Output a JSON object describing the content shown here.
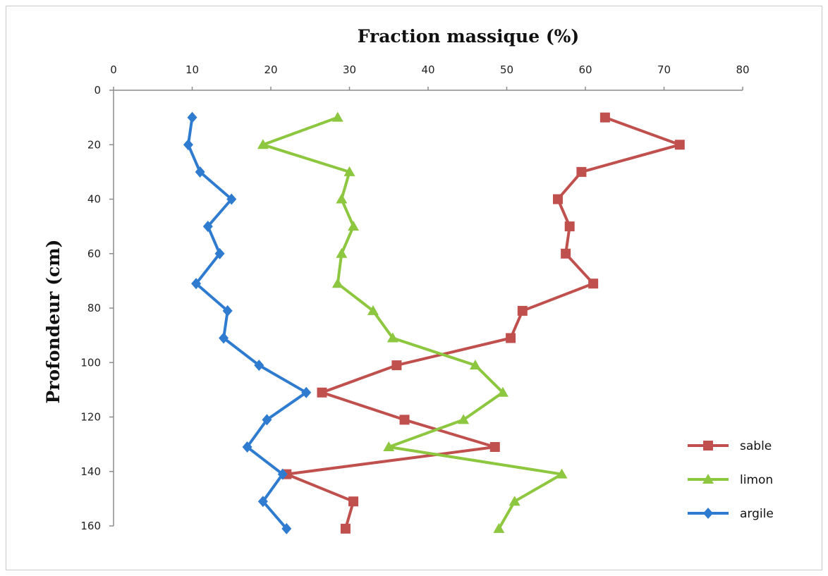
{
  "chart_data": {
    "type": "line",
    "title": "",
    "xlabel": "Fraction massique (%)",
    "ylabel": "Profondeur (cm)",
    "xlim": [
      0,
      80
    ],
    "ylim": [
      0,
      160
    ],
    "y_inverted": true,
    "x_axis_position": "top",
    "x_ticks": [
      0,
      10,
      20,
      30,
      40,
      50,
      60,
      70,
      80
    ],
    "y_ticks": [
      0,
      20,
      40,
      60,
      80,
      100,
      120,
      140,
      160
    ],
    "grid": false,
    "legend_position": "bottom-right",
    "series": [
      {
        "name": "sable",
        "color": "#C0504D",
        "marker": "square",
        "points": [
          [
            62.5,
            10
          ],
          [
            72,
            20
          ],
          [
            59.5,
            30
          ],
          [
            56.5,
            40
          ],
          [
            58,
            50
          ],
          [
            57.5,
            60
          ],
          [
            61,
            71
          ],
          [
            52,
            81
          ],
          [
            50.5,
            91
          ],
          [
            36,
            101
          ],
          [
            26.5,
            111
          ],
          [
            37,
            121
          ],
          [
            48.5,
            131
          ],
          [
            22,
            141
          ],
          [
            30.5,
            151
          ],
          [
            29.5,
            161
          ]
        ]
      },
      {
        "name": "limon",
        "color": "#8DC63F",
        "marker": "triangle",
        "points": [
          [
            28.5,
            10
          ],
          [
            19,
            20
          ],
          [
            30,
            30
          ],
          [
            29,
            40
          ],
          [
            30.5,
            50
          ],
          [
            29,
            60
          ],
          [
            28.5,
            71
          ],
          [
            33,
            81
          ],
          [
            35.5,
            91
          ],
          [
            46,
            101
          ],
          [
            49.5,
            111
          ],
          [
            44.5,
            121
          ],
          [
            35,
            131
          ],
          [
            57,
            141
          ],
          [
            51,
            151
          ],
          [
            49,
            161
          ]
        ]
      },
      {
        "name": "argile",
        "color": "#2E7BD0",
        "marker": "diamond",
        "points": [
          [
            10,
            10
          ],
          [
            9.5,
            20
          ],
          [
            11,
            30
          ],
          [
            15,
            40
          ],
          [
            12,
            50
          ],
          [
            13.5,
            60
          ],
          [
            10.5,
            71
          ],
          [
            14.5,
            81
          ],
          [
            14,
            91
          ],
          [
            18.5,
            101
          ],
          [
            24.5,
            111
          ],
          [
            19.5,
            121
          ],
          [
            17,
            131
          ],
          [
            21.5,
            141
          ],
          [
            19,
            151
          ],
          [
            22,
            161
          ]
        ]
      }
    ]
  }
}
